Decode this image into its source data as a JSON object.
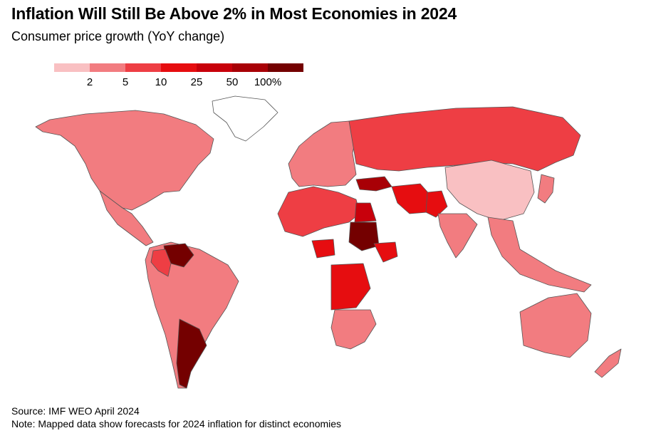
{
  "header": {
    "title": "Inflation Will Still Be Above 2% in Most Economies in 2024",
    "subtitle": "Consumer price growth (YoY change)"
  },
  "legend": {
    "bins": [
      {
        "color": "#f9c0c2",
        "label": ""
      },
      {
        "color": "#f27c80",
        "label": "2"
      },
      {
        "color": "#ee3e44",
        "label": "5"
      },
      {
        "color": "#e60d10",
        "label": "10"
      },
      {
        "color": "#c8000b",
        "label": "25"
      },
      {
        "color": "#a80006",
        "label": "50"
      },
      {
        "color": "#740000",
        "label": "100%"
      }
    ]
  },
  "colors": {
    "no_data": "#ffffff",
    "border": "#555555"
  },
  "map": {
    "regions": [
      {
        "name": "North America",
        "bin": 1
      },
      {
        "name": "Greenland",
        "bin": -1
      },
      {
        "name": "Mexico & Central America",
        "bin": 1
      },
      {
        "name": "South America",
        "bin": 1
      },
      {
        "name": "Argentina",
        "bin": 6
      },
      {
        "name": "Venezuela",
        "bin": 6
      },
      {
        "name": "Colombia",
        "bin": 2
      },
      {
        "name": "Europe",
        "bin": 1
      },
      {
        "name": "Russia",
        "bin": 2
      },
      {
        "name": "Turkey",
        "bin": 5
      },
      {
        "name": "Iran",
        "bin": 3
      },
      {
        "name": "Pakistan",
        "bin": 3
      },
      {
        "name": "China",
        "bin": 0
      },
      {
        "name": "India",
        "bin": 1
      },
      {
        "name": "Southeast Asia",
        "bin": 1
      },
      {
        "name": "Japan",
        "bin": 1
      },
      {
        "name": "Australia",
        "bin": 1
      },
      {
        "name": "New Zealand",
        "bin": 1
      },
      {
        "name": "North Africa",
        "bin": 2
      },
      {
        "name": "Egypt",
        "bin": 4
      },
      {
        "name": "Sudan",
        "bin": 6
      },
      {
        "name": "Ethiopia",
        "bin": 3
      },
      {
        "name": "Nigeria",
        "bin": 3
      },
      {
        "name": "DR Congo",
        "bin": 3
      },
      {
        "name": "Southern Africa",
        "bin": 1
      }
    ]
  },
  "footer": {
    "source": "Source: IMF WEO April 2024",
    "note": "Note: Mapped data show forecasts for 2024 inflation for distinct economies"
  }
}
